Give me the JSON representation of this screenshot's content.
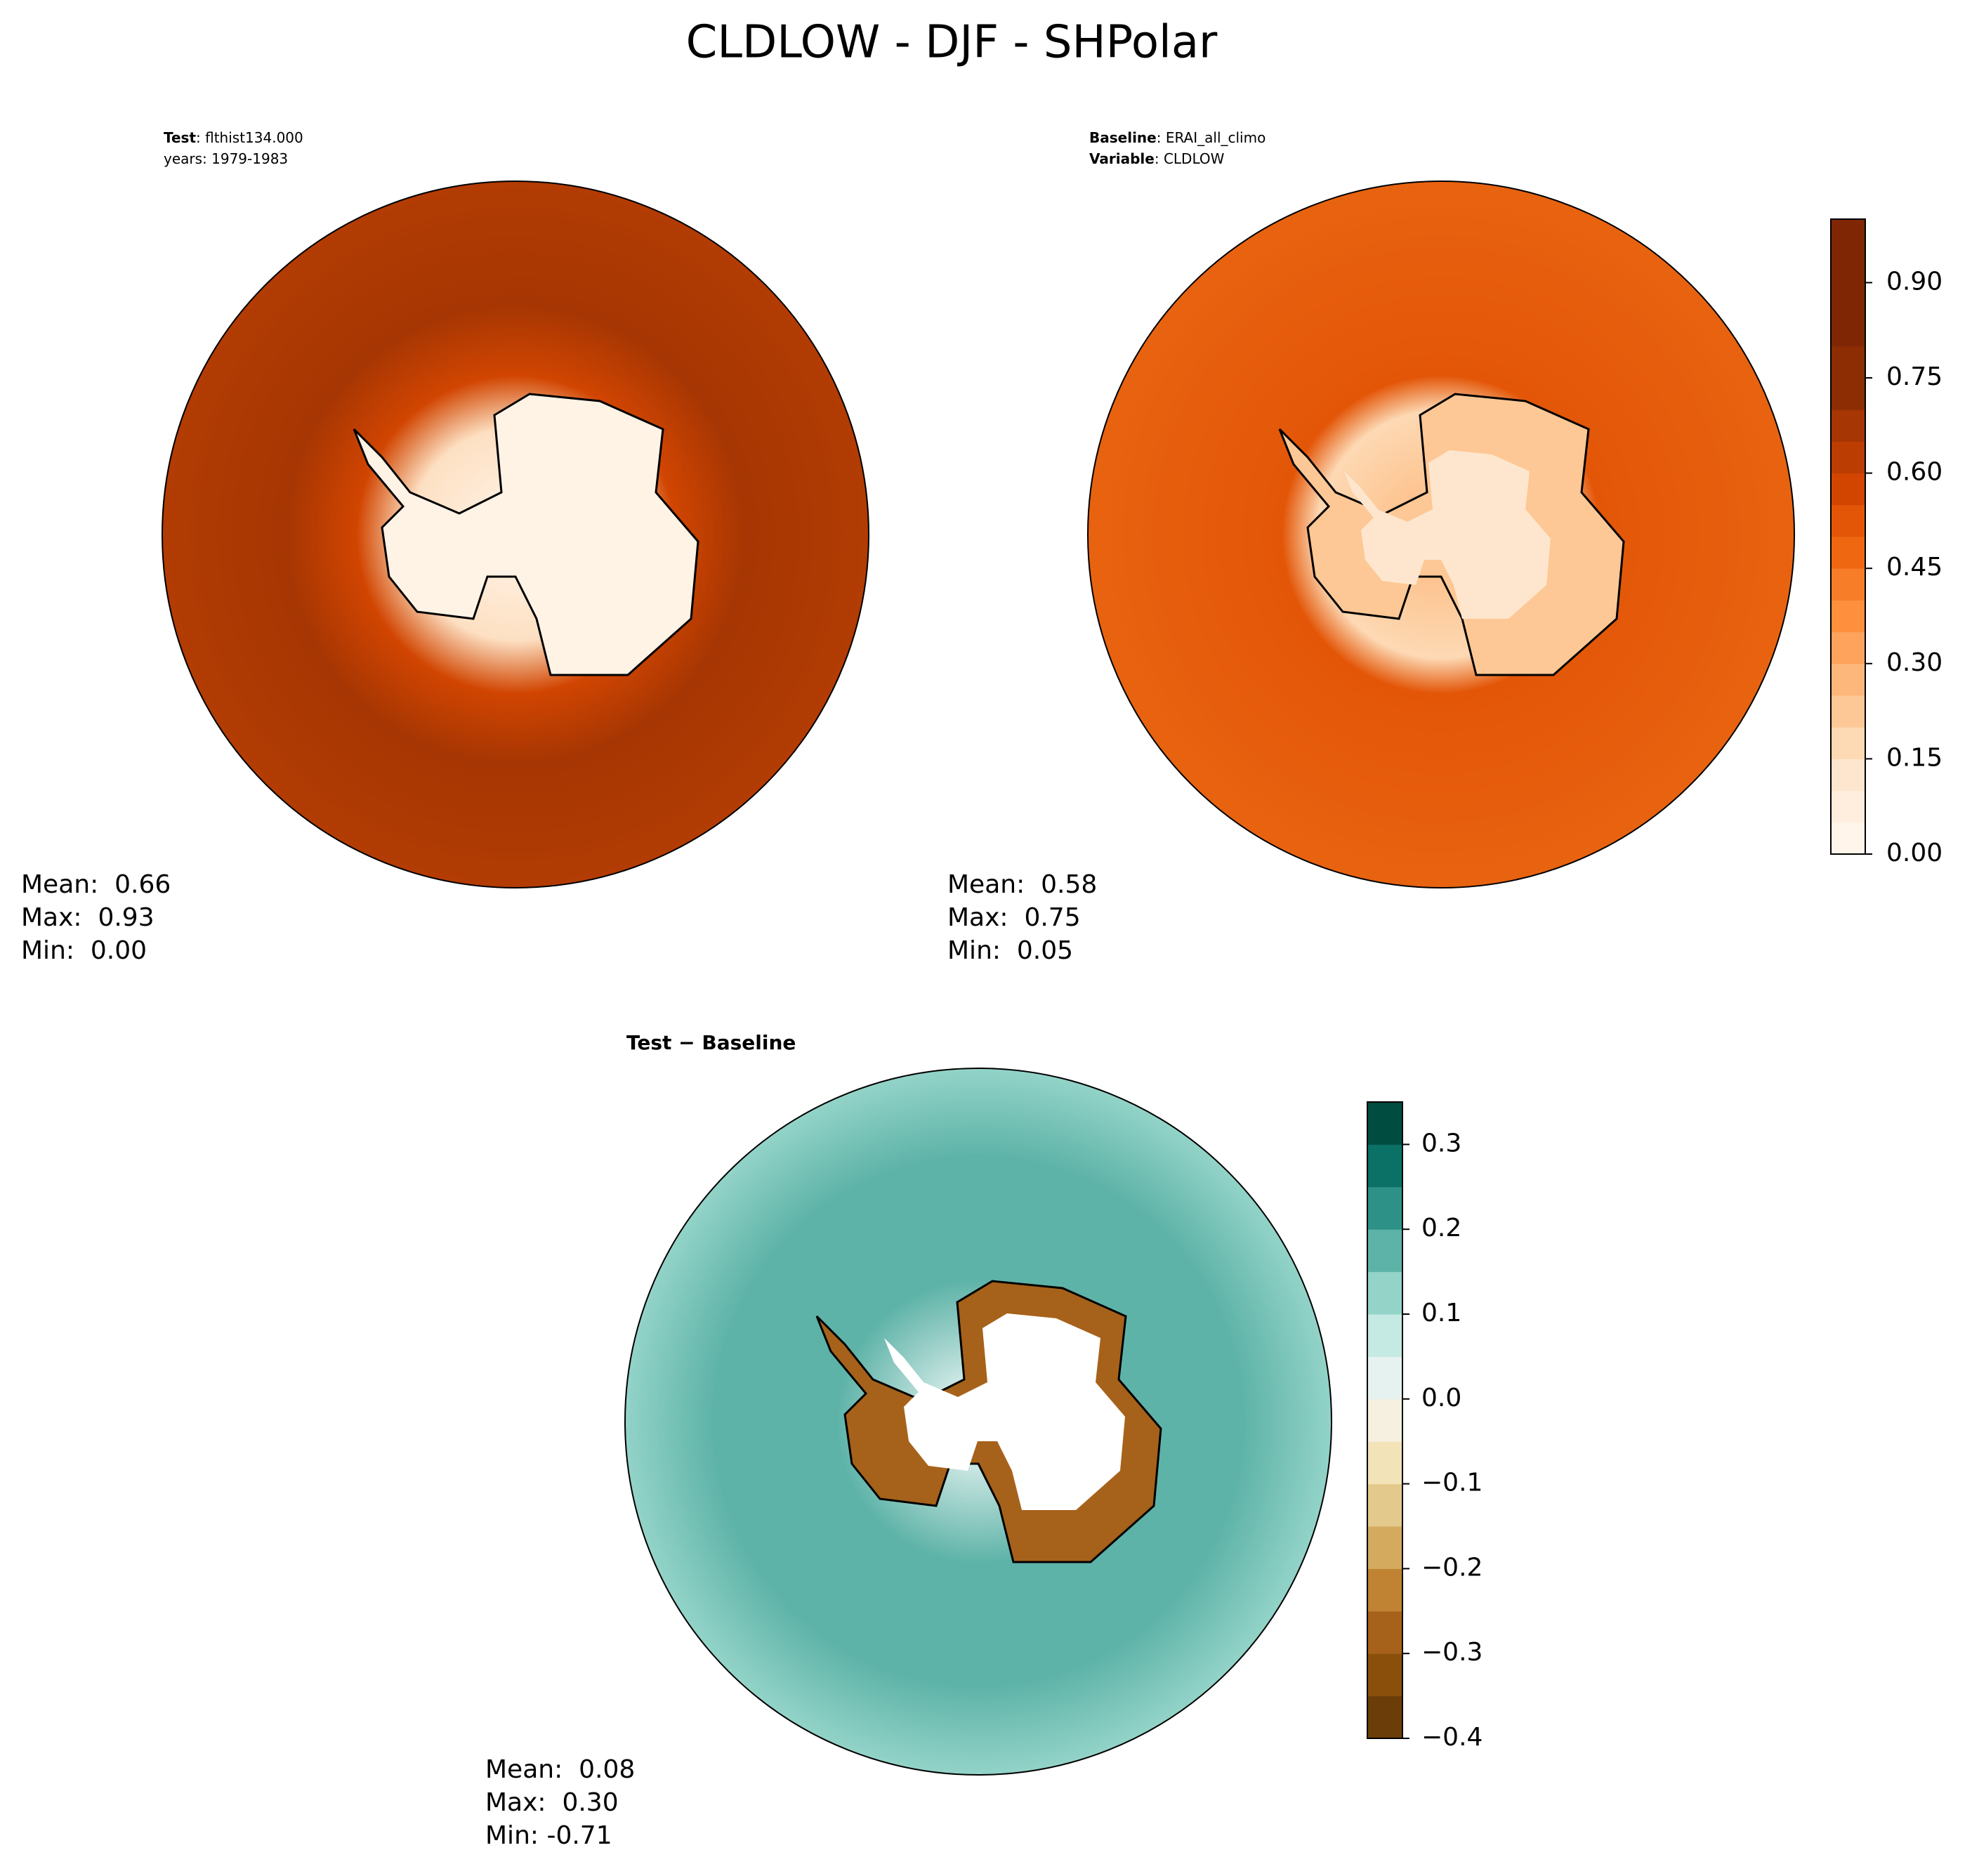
{
  "title": "CLDLOW - DJF - SHPolar",
  "panels": [
    {
      "header": [
        {
          "bold": "Test",
          "text": ": flthist134.000"
        },
        {
          "text": "years: 1979-1983"
        }
      ],
      "stats": [
        "Mean:  0.66",
        "Max:  0.93",
        "Min:  0.00"
      ]
    },
    {
      "header": [
        {
          "bold": "Baseline",
          "text": ": ERAI_all_climo"
        },
        {
          "bold": "Variable",
          "text": ": CLDLOW"
        }
      ],
      "stats": [
        "Mean:  0.58",
        "Max:  0.75",
        "Min:  0.05"
      ]
    },
    {
      "header": [
        {
          "bold": "Test − Baseline"
        }
      ],
      "stats": [
        "Mean:  0.08",
        "Max:  0.30",
        "Min: -0.71"
      ]
    }
  ],
  "colorbars": [
    {
      "lim": [
        0,
        1
      ],
      "colors": [
        "#fff5eb",
        "#ffeedd",
        "#fee6ce",
        "#fdd9b4",
        "#fdc895",
        "#fdb77a",
        "#fda35c",
        "#fd8f3d",
        "#f87d29",
        "#f06712",
        "#e35608",
        "#d14501",
        "#bc3d02",
        "#a63603",
        "#8c2d04",
        "#8c2d04",
        "#7f2704",
        "#7f2704",
        "#7f2704",
        "#7f2704"
      ],
      "ticks": [
        {
          "value": 0,
          "label": "0.00"
        },
        {
          "value": 0.15,
          "label": "0.15"
        },
        {
          "value": 0.3,
          "label": "0.30"
        },
        {
          "value": 0.45,
          "label": "0.45"
        },
        {
          "value": 0.6,
          "label": "0.60"
        },
        {
          "value": 0.75,
          "label": "0.75"
        },
        {
          "value": 0.9,
          "label": "0.90"
        }
      ]
    },
    {
      "lim": [
        -0.4,
        0.35
      ],
      "colors": [
        "#6b3d08",
        "#8a4f0b",
        "#a6621a",
        "#bf8333",
        "#d4aa5f",
        "#e4c98c",
        "#f2e3b9",
        "#f6f0e1",
        "#e6f2f0",
        "#c5e9e3",
        "#93d3c8",
        "#5eb3a8",
        "#2e9188",
        "#0b7066",
        "#014c40"
      ],
      "ticks": [
        {
          "value": -0.4,
          "label": "−0.4"
        },
        {
          "value": -0.3,
          "label": "−0.3"
        },
        {
          "value": -0.2,
          "label": "−0.2"
        },
        {
          "value": -0.1,
          "label": "−0.1"
        },
        {
          "value": 0,
          "label": "0.0"
        },
        0.1,
        0.2,
        0.3
      ]
    }
  ]
}
